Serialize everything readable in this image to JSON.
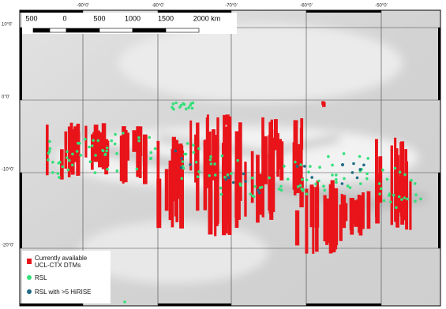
{
  "map": {
    "scale_bar": [
      "500",
      "0",
      "500",
      "1000",
      "1500",
      "2000 km"
    ],
    "longitude_labels": [
      "-90°0'",
      "-80°0'",
      "-70°0'",
      "-60°0'",
      "-50°0'"
    ],
    "latitude_labels": [
      "10°0'",
      "0°0'",
      "-10°0'",
      "-20°0'"
    ],
    "legend": [
      "Currently available",
      "UCL-CTX DTMs",
      "RSL",
      "RSL with >5 HiRISE"
    ]
  }
}
